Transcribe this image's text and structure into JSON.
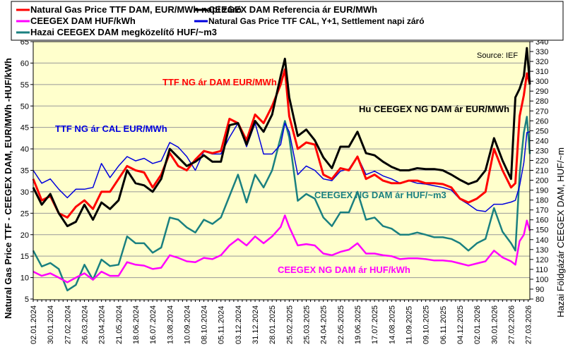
{
  "chart_data": {
    "type": "line",
    "title": "",
    "source": "Source: IEF",
    "ylabel": "Natural Gas Price TTF - CEEGEX DAM, EUR/MWh -HUF/kWh",
    "y2label": "Hazai Földgázár CEEGEX DAM, HUF/~m",
    "ylim": [
      5,
      65
    ],
    "y2lim": [
      80,
      340
    ],
    "yticks": [
      5,
      10,
      15,
      20,
      25,
      30,
      35,
      40,
      45,
      50,
      55,
      60,
      65
    ],
    "y2ticks": [
      80,
      90,
      100,
      110,
      120,
      130,
      140,
      150,
      160,
      170,
      180,
      190,
      200,
      210,
      220,
      230,
      240,
      250,
      260,
      270,
      280,
      290,
      300,
      310,
      320,
      330,
      340
    ],
    "x_unit": "weeks since 02.01.2024",
    "xlim": [
      0,
      116.4
    ],
    "xticklabels": [
      "02.01.2024",
      "30.01.2024",
      "27.02.2024",
      "26.03.2024",
      "23.04.2024",
      "21.05.2024",
      "18.06.2024",
      "16.07.2024",
      "13.08.2024",
      "10.09.2024",
      "08.10.2024",
      "05.11.2024",
      "03.12.2024",
      "31.12.2024",
      "28.01.2025",
      "25.02.2025",
      "25.03.2025",
      "24.04.2025",
      "22.05.2025",
      "19.06.2025",
      "17.07.2025",
      "14.08.2025",
      "11.09.2025",
      "09.10.2025",
      "06.11.2025",
      "04.12.2025",
      "02.01.2026",
      "30.01.2026",
      "27.02.2026",
      "27.03.2026"
    ],
    "grid": true,
    "legend_position": "top",
    "x": [
      0,
      2,
      4,
      6,
      8,
      10,
      12,
      14,
      16,
      18,
      20,
      22,
      24,
      26,
      28,
      30,
      32,
      34,
      36,
      38,
      40,
      42,
      44,
      46,
      48,
      50,
      52,
      54,
      56,
      58,
      59,
      60,
      62,
      64,
      66,
      68,
      70,
      72,
      74,
      76,
      78,
      80,
      82,
      84,
      86,
      88,
      90,
      92,
      94,
      96,
      98,
      100,
      102,
      104,
      106,
      108,
      110,
      112,
      113,
      114,
      115,
      115.7,
      116.4
    ],
    "series": [
      {
        "name": "Natural Gas Price TTF DAM, EUR/MWh napi záró",
        "color": "#ff0000",
        "width": 3,
        "axis": "left",
        "values": [
          33,
          28,
          29,
          25,
          24,
          26.5,
          28,
          26,
          30,
          30,
          33,
          36,
          35,
          34.5,
          31,
          34,
          39,
          36,
          35,
          37.5,
          39.5,
          39,
          39.5,
          47,
          46,
          42,
          48,
          46,
          50,
          55,
          58.5,
          47.6,
          40,
          41.5,
          41,
          34,
          33,
          35.5,
          35,
          38.2,
          33,
          34,
          32.6,
          32,
          32,
          32.6,
          32.6,
          32,
          32,
          31.8,
          31,
          28.4,
          27.5,
          28.4,
          30,
          40,
          35,
          31,
          32,
          47.6,
          52.5,
          57.6,
          55
        ]
      },
      {
        "name": "CEEGEX DAM Referencia ár  EUR/MWh",
        "color": "#000000",
        "width": 3,
        "axis": "left",
        "values": [
          31,
          27,
          29.5,
          25,
          22,
          23,
          27,
          23.5,
          27.5,
          26,
          28,
          35,
          32,
          31.5,
          30,
          33,
          40,
          38,
          36,
          37,
          38.5,
          37,
          37,
          45.5,
          46,
          41,
          46.5,
          44,
          48,
          57,
          61,
          52,
          43,
          44.5,
          42,
          38,
          35.5,
          40.5,
          40.5,
          44,
          39,
          38.5,
          37,
          35.8,
          35,
          35,
          35.5,
          35.3,
          35.3,
          35,
          34,
          32.8,
          31.8,
          32.5,
          35,
          42.5,
          37.3,
          33,
          52,
          54,
          57,
          63.5,
          55
        ]
      },
      {
        "name": "CEEGEX DAM HUF/kWh",
        "color": "#ff00ff",
        "width": 2.5,
        "axis": "left",
        "values": [
          11.4,
          10.4,
          11,
          10,
          8.9,
          10,
          11,
          9.5,
          11.4,
          10.4,
          10.4,
          13.6,
          13,
          12.8,
          12,
          12.3,
          15.2,
          14.6,
          13.8,
          13.6,
          14.6,
          14.3,
          15.2,
          17.5,
          19,
          17.5,
          19.6,
          18,
          19.6,
          21.8,
          24.5,
          21.8,
          17.5,
          17.8,
          17.5,
          15.6,
          15.2,
          16,
          16.5,
          18,
          15.6,
          15.6,
          15.2,
          15,
          14.3,
          14.5,
          14.5,
          14.3,
          14,
          14,
          13.8,
          13.3,
          12.8,
          13.3,
          13.8,
          16.3,
          14.7,
          13.8,
          13,
          18.5,
          20,
          23.3,
          20.9
        ]
      },
      {
        "name": "Natural Gas Price TTF CAL, Y+1, Settlement napi záró",
        "color": "#0000dd",
        "width": 1.5,
        "axis": "left",
        "values": [
          35,
          32,
          33,
          30.6,
          28.6,
          30.6,
          30.6,
          31,
          36.6,
          33.3,
          36,
          38.2,
          37.2,
          37.8,
          36.6,
          37.2,
          41.5,
          40.4,
          38.2,
          35,
          39.4,
          38.8,
          38.8,
          42.7,
          46,
          40.5,
          46,
          38.8,
          38.8,
          41,
          46,
          44,
          34,
          36,
          35,
          33,
          32.6,
          34.8,
          35.3,
          38.3,
          34,
          34.8,
          33.7,
          33,
          32,
          32.6,
          32,
          31.8,
          31.4,
          31,
          30.4,
          28.3,
          27.1,
          25.7,
          25.4,
          27.1,
          27.1,
          27.6,
          28,
          31.4,
          36.8,
          43.8,
          44
        ]
      },
      {
        "name": "Hazai CEEGEX DAM megközelítő HUF/~m3",
        "color": "#1a8080",
        "width": 2.5,
        "axis": "left",
        "values": [
          16.3,
          12.6,
          13.4,
          12,
          7,
          8.3,
          13,
          9.5,
          14.2,
          12.7,
          13,
          19.6,
          18,
          18,
          15.8,
          17,
          24,
          23.5,
          21.7,
          20.5,
          23.5,
          22.5,
          24,
          29,
          34,
          27.5,
          34,
          31,
          35,
          42.7,
          46.5,
          42.7,
          27.9,
          29.5,
          28.4,
          24,
          22,
          25.2,
          25.2,
          30,
          23.5,
          24,
          22,
          21.4,
          20,
          20,
          20.5,
          20,
          19.4,
          19.4,
          19,
          18,
          16.3,
          18,
          19,
          26.2,
          20.7,
          18,
          16.3,
          34,
          43.8,
          47.5,
          38.8
        ]
      }
    ],
    "annotations": [
      {
        "text": "TTF NG ár DAM EUR/MWh",
        "color": "#ff0000"
      },
      {
        "text": "TTF NG ár CAL EUR/MWh",
        "color": "#0000dd"
      },
      {
        "text": "Hu CEEGEX NG DAM ár EUR/MWh",
        "color": "#000000"
      },
      {
        "text": "CEEGEX NG DAM ár HUF/~m3",
        "color": "#1a8080"
      },
      {
        "text": "CEEGEX NG DAM ár HUF/kWh",
        "color": "#ff00ff"
      }
    ]
  },
  "colors": {
    "plot_bg": "#ffffcc",
    "grid": "#999999"
  }
}
